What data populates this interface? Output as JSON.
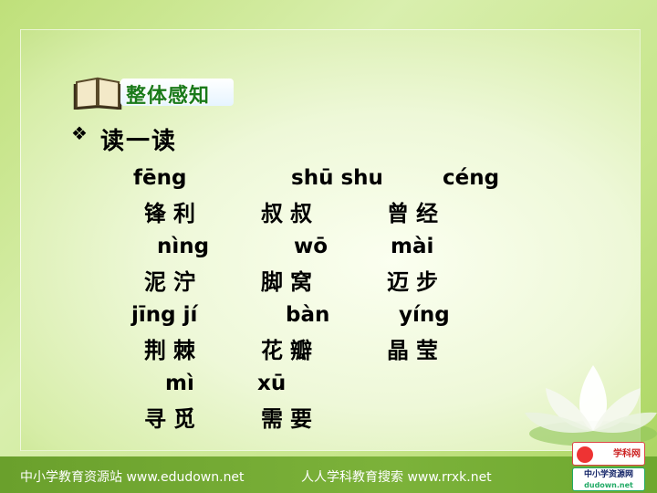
{
  "header": {
    "title": "整体感知"
  },
  "section": {
    "bullet": "❖",
    "title": "读一读"
  },
  "vocab": [
    {
      "pinyin": "fēng",
      "word": "锋利"
    },
    {
      "pinyin": "shū shu",
      "word": "叔叔"
    },
    {
      "pinyin": "céng",
      "word": "曾经"
    },
    {
      "pinyin": "nìng",
      "word": "泥泞"
    },
    {
      "pinyin": "wō",
      "word": "脚窝"
    },
    {
      "pinyin": "mài",
      "word": "迈步"
    },
    {
      "pinyin": "jīng jí",
      "word": "荆棘"
    },
    {
      "pinyin": "bàn",
      "word": "花瓣"
    },
    {
      "pinyin": "yíng",
      "word": "晶莹"
    },
    {
      "pinyin": "mì",
      "word": "寻觅"
    },
    {
      "pinyin": "xū",
      "word": "需要"
    }
  ],
  "footer": {
    "left": "中小学教育资源站 www.edudown.net",
    "right": "人人学科教育搜索 www.rrxk.net"
  },
  "logos": {
    "top": "学科网",
    "bottom_main": "中小学资源网",
    "bottom_sub": "dudown.net"
  },
  "colors": {
    "title_green": "#1a7a1a",
    "footer_green": "#7cb23a",
    "background_green": "#c6e58a"
  }
}
